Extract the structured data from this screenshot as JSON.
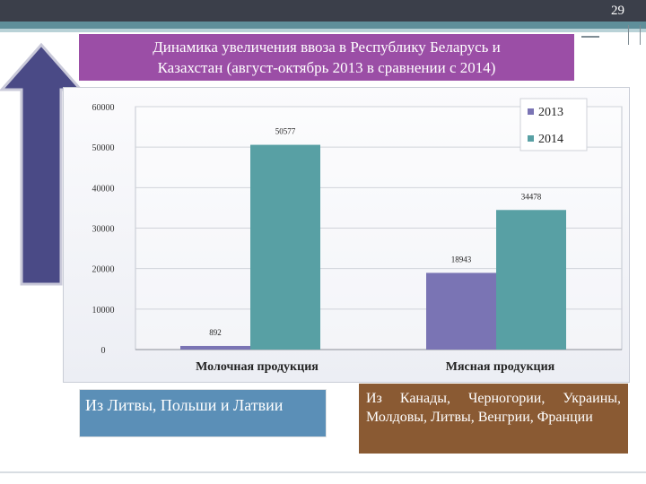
{
  "page_number": "29",
  "title_line1": "Динамика увеличения ввоза в Республику Беларусь и",
  "title_line2": "Казахстан (август-октябрь 2013 в сравнении с 2014)",
  "captions": {
    "left": "Из Литвы, Польши и Латвии",
    "right": "Из Канады, Черногории, Украины, Молдовы, Литвы, Венгрии, Франции"
  },
  "colors": {
    "series_2013": "#7a74b4",
    "series_2014": "#58a0a4",
    "title_bg": "#9b4ea6",
    "arrow_fill": "#4a4a86"
  },
  "icons": [
    "up-arrow-icon"
  ],
  "chart_data": {
    "type": "bar",
    "categories": [
      "Молочная продукция",
      "Мясная продукция"
    ],
    "series": [
      {
        "name": "2013",
        "values": [
          892,
          18943
        ]
      },
      {
        "name": "2014",
        "values": [
          50577,
          34478
        ]
      }
    ],
    "data_labels": [
      "892",
      "50577",
      "18943",
      "34478"
    ],
    "yticks": [
      "0",
      "10000",
      "20000",
      "30000",
      "40000",
      "50000",
      "60000"
    ],
    "ylim": [
      0,
      60000
    ],
    "grid": true,
    "legend": "top-right"
  }
}
